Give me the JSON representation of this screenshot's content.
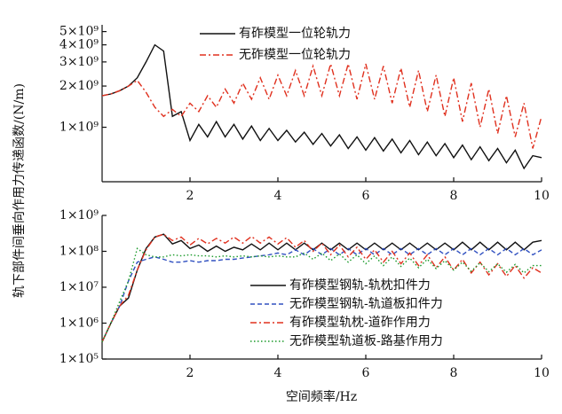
{
  "chart_data": [
    {
      "type": "line",
      "log_y": true,
      "legend": "upper center",
      "ylabel": "轨下部件间垂向作用力传递函数/(N/m)",
      "xlim": [
        0,
        10
      ],
      "xticks": [
        2,
        4,
        6,
        8,
        10
      ],
      "ylim": [
        400000000.0,
        5600000000.0
      ],
      "yticks": [
        {
          "value": 1000000000.0,
          "label": "1×10⁹"
        },
        {
          "value": 2000000000.0,
          "label": "2×10⁹"
        },
        {
          "value": 3000000000.0,
          "label": "3×10⁹"
        },
        {
          "value": 4000000000.0,
          "label": "4×10⁹"
        },
        {
          "value": 5000000000.0,
          "label": "5×10⁹"
        }
      ],
      "x": [
        0,
        0.2,
        0.4,
        0.6,
        0.8,
        1,
        1.2,
        1.4,
        1.6,
        1.8,
        2,
        2.2,
        2.4,
        2.6,
        2.8,
        3,
        3.2,
        3.4,
        3.6,
        3.8,
        4,
        4.2,
        4.4,
        4.6,
        4.8,
        5,
        5.2,
        5.4,
        5.6,
        5.8,
        6,
        6.2,
        6.4,
        6.6,
        6.8,
        7,
        7.2,
        7.4,
        7.6,
        7.8,
        8,
        8.2,
        8.4,
        8.6,
        8.8,
        9,
        9.2,
        9.4,
        9.6,
        9.8,
        10
      ],
      "series": [
        {
          "name": "有砟模型一位轮轨力",
          "color": "#111111",
          "dash": "solid",
          "values": [
            1700000000.0,
            1750000000.0,
            1850000000.0,
            2000000000.0,
            2300000000.0,
            3000000000.0,
            4000000000.0,
            3600000000.0,
            1200000000.0,
            1300000000.0,
            800000000.0,
            1050000000.0,
            850000000.0,
            1100000000.0,
            850000000.0,
            1050000000.0,
            820000000.0,
            1020000000.0,
            800000000.0,
            980000000.0,
            800000000.0,
            950000000.0,
            780000000.0,
            920000000.0,
            750000000.0,
            900000000.0,
            730000000.0,
            880000000.0,
            700000000.0,
            850000000.0,
            680000000.0,
            840000000.0,
            670000000.0,
            820000000.0,
            650000000.0,
            800000000.0,
            630000000.0,
            780000000.0,
            620000000.0,
            760000000.0,
            600000000.0,
            740000000.0,
            580000000.0,
            720000000.0,
            570000000.0,
            700000000.0,
            550000000.0,
            680000000.0,
            500000000.0,
            620000000.0,
            600000000.0
          ]
        },
        {
          "name": "无砟模型一位轮轨力",
          "color": "#e0301e",
          "dash": "dashdot",
          "values": [
            1700000000.0,
            1750000000.0,
            1850000000.0,
            2000000000.0,
            2200000000.0,
            1800000000.0,
            1400000000.0,
            1200000000.0,
            1350000000.0,
            1200000000.0,
            1500000000.0,
            1300000000.0,
            1700000000.0,
            1400000000.0,
            1900000000.0,
            1500000000.0,
            2100000000.0,
            1600000000.0,
            2300000000.0,
            1600000000.0,
            2400000000.0,
            1700000000.0,
            2600000000.0,
            1700000000.0,
            2800000000.0,
            1700000000.0,
            2900000000.0,
            1700000000.0,
            2900000000.0,
            1600000000.0,
            2900000000.0,
            1600000000.0,
            2800000000.0,
            1500000000.0,
            2700000000.0,
            1400000000.0,
            2600000000.0,
            1300000000.0,
            2400000000.0,
            1200000000.0,
            2300000000.0,
            1100000000.0,
            2100000000.0,
            1000000000.0,
            1900000000.0,
            900000000.0,
            1700000000.0,
            850000000.0,
            1500000000.0,
            700000000.0,
            1200000000.0
          ]
        }
      ]
    },
    {
      "type": "line",
      "log_y": true,
      "legend": "lower right",
      "xlabel": "空间频率/Hz",
      "xlim": [
        0,
        10
      ],
      "xticks": [
        2,
        4,
        6,
        8,
        10
      ],
      "ylim": [
        100000.0,
        1000000000.0
      ],
      "yticks": [
        {
          "value": 100000.0,
          "label": "1×10⁵"
        },
        {
          "value": 1000000.0,
          "label": "1×10⁶"
        },
        {
          "value": 10000000.0,
          "label": "1×10⁷"
        },
        {
          "value": 100000000.0,
          "label": "1×10⁸"
        },
        {
          "value": 1000000000.0,
          "label": "1×10⁹"
        }
      ],
      "x": [
        0,
        0.2,
        0.4,
        0.6,
        0.8,
        1,
        1.2,
        1.4,
        1.6,
        1.8,
        2,
        2.2,
        2.4,
        2.6,
        2.8,
        3,
        3.2,
        3.4,
        3.6,
        3.8,
        4,
        4.2,
        4.4,
        4.6,
        4.8,
        5,
        5.2,
        5.4,
        5.6,
        5.8,
        6,
        6.2,
        6.4,
        6.6,
        6.8,
        7,
        7.2,
        7.4,
        7.6,
        7.8,
        8,
        8.2,
        8.4,
        8.6,
        8.8,
        9,
        9.2,
        9.4,
        9.6,
        9.8,
        10
      ],
      "series": [
        {
          "name": "有砟模型钢轨-轨枕扣件力",
          "color": "#111111",
          "dash": "solid",
          "values": [
            300000.0,
            1000000.0,
            3000000.0,
            5000000.0,
            30000000.0,
            120000000.0,
            250000000.0,
            300000000.0,
            160000000.0,
            200000000.0,
            120000000.0,
            150000000.0,
            100000000.0,
            140000000.0,
            100000000.0,
            130000000.0,
            110000000.0,
            160000000.0,
            110000000.0,
            170000000.0,
            110000000.0,
            170000000.0,
            110000000.0,
            170000000.0,
            110000000.0,
            170000000.0,
            110000000.0,
            170000000.0,
            110000000.0,
            170000000.0,
            110000000.0,
            170000000.0,
            110000000.0,
            170000000.0,
            110000000.0,
            170000000.0,
            110000000.0,
            170000000.0,
            110000000.0,
            170000000.0,
            110000000.0,
            180000000.0,
            110000000.0,
            180000000.0,
            110000000.0,
            180000000.0,
            110000000.0,
            180000000.0,
            110000000.0,
            180000000.0,
            200000000.0
          ]
        },
        {
          "name": "无砟模型钢轨-轨道板扣件力",
          "color": "#3050c0",
          "dash": "dashed",
          "values": [
            300000.0,
            1000000.0,
            3000000.0,
            15000000.0,
            50000000.0,
            60000000.0,
            70000000.0,
            60000000.0,
            50000000.0,
            50000000.0,
            55000000.0,
            50000000.0,
            55000000.0,
            55000000.0,
            60000000.0,
            60000000.0,
            65000000.0,
            70000000.0,
            75000000.0,
            80000000.0,
            90000000.0,
            80000000.0,
            110000000.0,
            80000000.0,
            120000000.0,
            80000000.0,
            120000000.0,
            80000000.0,
            120000000.0,
            80000000.0,
            120000000.0,
            80000000.0,
            120000000.0,
            80000000.0,
            120000000.0,
            80000000.0,
            120000000.0,
            80000000.0,
            120000000.0,
            80000000.0,
            120000000.0,
            80000000.0,
            120000000.0,
            80000000.0,
            120000000.0,
            80000000.0,
            120000000.0,
            80000000.0,
            120000000.0,
            80000000.0,
            110000000.0
          ]
        },
        {
          "name": "有砟模型轨枕-道砟作用力",
          "color": "#e0301e",
          "dash": "dashdot",
          "values": [
            300000.0,
            1000000.0,
            3000000.0,
            6000000.0,
            30000000.0,
            110000000.0,
            250000000.0,
            300000000.0,
            200000000.0,
            250000000.0,
            150000000.0,
            230000000.0,
            160000000.0,
            230000000.0,
            170000000.0,
            250000000.0,
            170000000.0,
            260000000.0,
            170000000.0,
            250000000.0,
            160000000.0,
            240000000.0,
            130000000.0,
            200000000.0,
            100000000.0,
            170000000.0,
            80000000.0,
            150000000.0,
            70000000.0,
            130000000.0,
            60000000.0,
            110000000.0,
            50000000.0,
            100000000.0,
            45000000.0,
            90000000.0,
            40000000.0,
            80000000.0,
            35000000.0,
            70000000.0,
            30000000.0,
            60000000.0,
            25000000.0,
            50000000.0,
            22000000.0,
            45000000.0,
            20000000.0,
            40000000.0,
            18000000.0,
            35000000.0,
            25000000.0
          ]
        },
        {
          "name": "无砟模型轨道板-路基作用力",
          "color": "#1a9a2a",
          "dash": "dotted",
          "values": [
            300000.0,
            1000000.0,
            4000000.0,
            15000000.0,
            120000000.0,
            80000000.0,
            70000000.0,
            70000000.0,
            80000000.0,
            75000000.0,
            80000000.0,
            75000000.0,
            75000000.0,
            70000000.0,
            75000000.0,
            70000000.0,
            75000000.0,
            70000000.0,
            75000000.0,
            70000000.0,
            75000000.0,
            70000000.0,
            70000000.0,
            90000000.0,
            60000000.0,
            90000000.0,
            55000000.0,
            85000000.0,
            50000000.0,
            80000000.0,
            45000000.0,
            75000000.0,
            40000000.0,
            70000000.0,
            38000000.0,
            65000000.0,
            35000000.0,
            60000000.0,
            33000000.0,
            55000000.0,
            30000000.0,
            50000000.0,
            28000000.0,
            48000000.0,
            27000000.0,
            45000000.0,
            26000000.0,
            43000000.0,
            25000000.0,
            40000000.0,
            40000000.0
          ]
        }
      ]
    }
  ]
}
